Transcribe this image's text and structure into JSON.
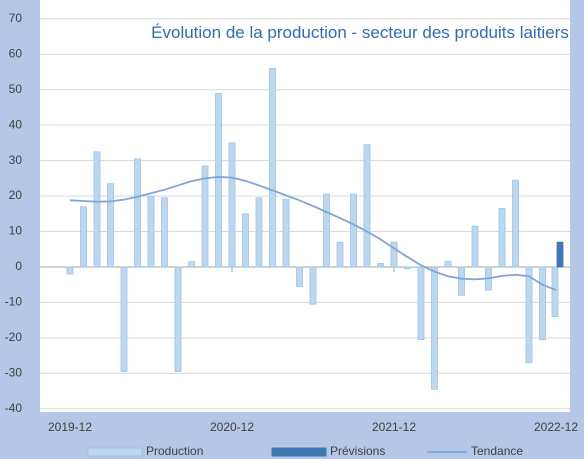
{
  "chart_data": {
    "type": "bar",
    "title": "Évolution de la production - secteur des produits laitiers",
    "categories": [
      "2019-12",
      null,
      null,
      null,
      null,
      null,
      null,
      null,
      null,
      null,
      null,
      null,
      "2020-12",
      null,
      null,
      null,
      null,
      null,
      null,
      null,
      null,
      null,
      null,
      null,
      "2021-12",
      null,
      null,
      null,
      null,
      null,
      null,
      null,
      null,
      null,
      null,
      null,
      "2022-12"
    ],
    "series": [
      {
        "name": "Production",
        "color": "#bdd7ee",
        "values": [
          -2,
          17,
          32.5,
          23.5,
          -29.5,
          30.5,
          20,
          19.5,
          -29.5,
          1.5,
          28.5,
          49,
          35,
          15,
          19.5,
          56,
          19,
          -5.5,
          -10.5,
          20.5,
          7,
          20.5,
          34.5,
          1,
          7,
          -0.5,
          -20.5,
          -34.5,
          1.5,
          -8,
          11.5,
          -6.5,
          16.5,
          24.5,
          -27,
          -20.5,
          -14
        ]
      },
      {
        "name": "Prévisions",
        "color": "#3f78b0",
        "values": [
          null,
          null,
          null,
          null,
          null,
          null,
          null,
          null,
          null,
          null,
          null,
          null,
          null,
          null,
          null,
          null,
          null,
          null,
          null,
          null,
          null,
          null,
          null,
          null,
          null,
          null,
          null,
          null,
          null,
          null,
          null,
          null,
          null,
          null,
          null,
          null,
          7
        ]
      },
      {
        "name": "Tendance",
        "type": "line",
        "color": "#7ea6d8",
        "values": [
          18.8,
          18.6,
          18.4,
          18.5,
          19,
          19.8,
          20.8,
          21.8,
          23,
          24.2,
          25,
          25.4,
          25.2,
          24.3,
          23,
          21.6,
          20.2,
          18.8,
          17.2,
          15.5,
          13.8,
          12,
          10,
          7.8,
          5.3,
          2.8,
          0.5,
          -1.3,
          -2.6,
          -3.3,
          -3.5,
          -3.2,
          -2.5,
          -2.2,
          -2.6,
          -5,
          -6.5
        ]
      }
    ],
    "ylim": [
      -40,
      70
    ],
    "yticks": [
      -40,
      -30,
      -20,
      -10,
      0,
      10,
      20,
      30,
      40,
      50,
      60,
      70
    ],
    "grid": true
  }
}
